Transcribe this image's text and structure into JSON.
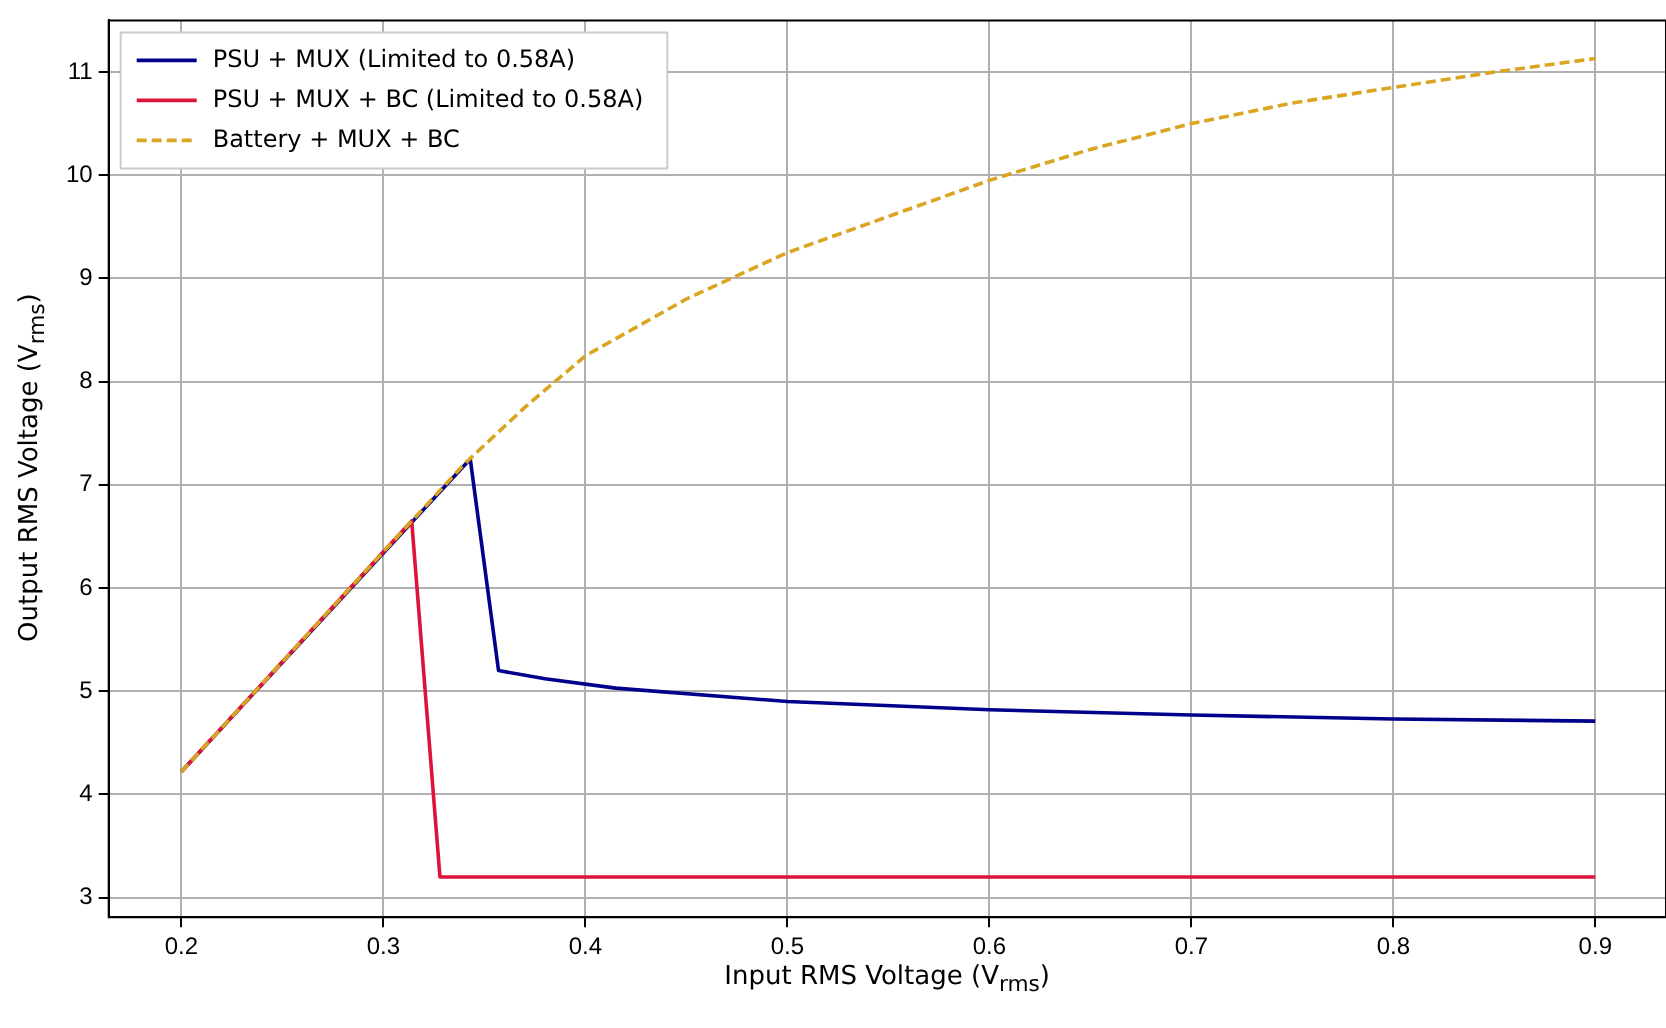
{
  "chart_data": {
    "type": "line",
    "xlabel": "Input RMS Voltage (V$_{rms}$)",
    "ylabel": "Output RMS Voltage (V$_{rms}$)",
    "xlim": [
      0.164,
      0.935
    ],
    "ylim": [
      2.81,
      11.5
    ],
    "xticks": [
      0.2,
      0.3,
      0.4,
      0.5,
      0.6,
      0.7,
      0.8,
      0.9
    ],
    "yticks": [
      3,
      4,
      5,
      6,
      7,
      8,
      9,
      10,
      11
    ],
    "grid": true,
    "legend": "top left",
    "marker": "none",
    "series": [
      {
        "name": "PSU + MUX (Limited to 0.58A)",
        "color": "#00008b",
        "line_style": "solid",
        "x": [
          0.2,
          0.343,
          0.357,
          0.38,
          0.415,
          0.5,
          0.6,
          0.7,
          0.8,
          0.9
        ],
        "values": [
          4.22,
          7.25,
          5.2,
          5.12,
          5.03,
          4.9,
          4.82,
          4.77,
          4.73,
          4.71
        ]
      },
      {
        "name": "PSU + MUX + BC (Limited to 0.58A)",
        "color": "#dc143c",
        "line_style": "solid",
        "x": [
          0.2,
          0.314,
          0.328,
          0.5,
          0.7,
          0.9
        ],
        "values": [
          4.22,
          6.65,
          3.2,
          3.2,
          3.2,
          3.2
        ]
      },
      {
        "name": "Battery + MUX + BC",
        "color": "#daa520",
        "line_style": "dashed",
        "x": [
          0.2,
          0.3,
          0.34,
          0.37,
          0.4,
          0.45,
          0.5,
          0.55,
          0.6,
          0.65,
          0.7,
          0.75,
          0.8,
          0.85,
          0.9
        ],
        "values": [
          4.22,
          6.35,
          7.2,
          7.75,
          8.25,
          8.8,
          9.25,
          9.6,
          9.95,
          10.25,
          10.5,
          10.7,
          10.85,
          11.0,
          11.13
        ]
      }
    ]
  }
}
